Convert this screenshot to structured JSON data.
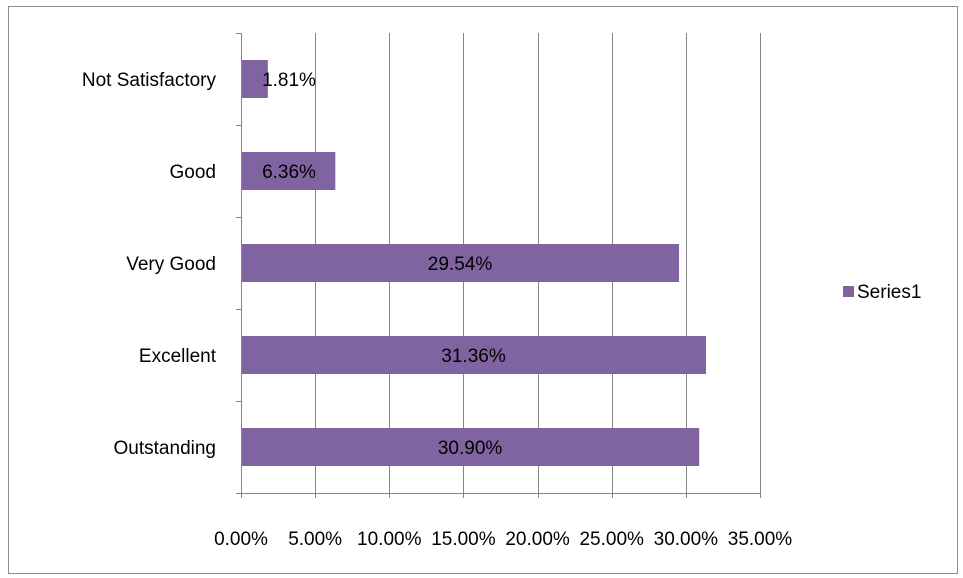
{
  "chart_data": {
    "type": "bar",
    "orientation": "horizontal",
    "categories": [
      "Not Satisfactory",
      "Good",
      "Very Good",
      "Excellent",
      "Outstanding"
    ],
    "series": [
      {
        "name": "Series1",
        "values": [
          1.81,
          6.36,
          29.54,
          31.36,
          30.9
        ],
        "data_labels": [
          "1.81%",
          "6.36%",
          "29.54%",
          "31.36%",
          "30.90%"
        ],
        "color": "#8064A2"
      }
    ],
    "x_ticks": [
      "0.00%",
      "5.00%",
      "10.00%",
      "15.00%",
      "20.00%",
      "25.00%",
      "30.00%",
      "35.00%"
    ],
    "xlim": [
      0,
      35
    ],
    "x_unit": "percent",
    "grid": "vertical",
    "legend": "right"
  },
  "colors": {
    "bar": "#8064A2",
    "gridline": "#868686",
    "axis": "#868686",
    "frame": "#8c8c8c"
  }
}
